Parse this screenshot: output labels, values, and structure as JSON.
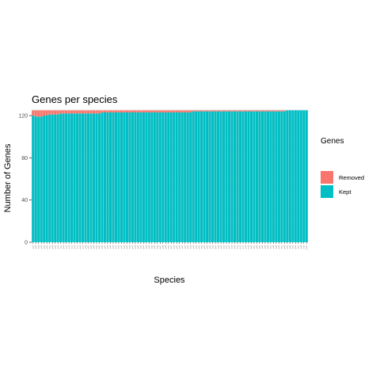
{
  "chart_data": {
    "type": "bar",
    "stacked": true,
    "title": "Genes per species",
    "xlabel": "Species",
    "ylabel": "Number of Genes",
    "ylim": [
      0,
      126
    ],
    "yticks": [
      0,
      40,
      80,
      120
    ],
    "ytick_labels": [
      "0",
      "40",
      "80",
      "120"
    ],
    "grid": true,
    "legend_title": "Genes",
    "legend_position": "right",
    "categories": [
      "sp01",
      "sp02",
      "sp03",
      "sp04",
      "sp05",
      "sp06",
      "sp07",
      "sp08",
      "sp09",
      "sp10",
      "sp11",
      "sp12",
      "sp13",
      "sp14",
      "sp15",
      "sp16",
      "sp17",
      "sp18",
      "sp19",
      "sp20",
      "sp21",
      "sp22",
      "sp23",
      "sp24",
      "sp25",
      "sp26",
      "sp27",
      "sp28",
      "sp29",
      "sp30",
      "sp31",
      "sp32",
      "sp33",
      "sp34",
      "sp35",
      "sp36",
      "sp37",
      "sp38",
      "sp39",
      "sp40",
      "sp41",
      "sp42",
      "sp43",
      "sp44",
      "sp45",
      "sp46",
      "sp47",
      "sp48",
      "sp49",
      "sp50",
      "sp51",
      "sp52",
      "sp53",
      "sp54",
      "sp55",
      "sp56",
      "sp57",
      "sp58",
      "sp59",
      "sp60",
      "sp61",
      "sp62",
      "sp63",
      "sp64",
      "sp65",
      "sp66",
      "sp67",
      "sp68",
      "sp69",
      "sp70",
      "sp71",
      "sp72",
      "sp73",
      "sp74",
      "sp75",
      "sp76",
      "sp77",
      "sp78",
      "sp79",
      "sp80",
      "sp81",
      "sp82",
      "sp83",
      "sp84",
      "sp85",
      "sp86",
      "sp87",
      "sp88",
      "sp89",
      "sp90",
      "sp91",
      "sp92",
      "sp93",
      "sp94",
      "sp95",
      "sp96",
      "sp97",
      "sp98",
      "sp99",
      "sp100"
    ],
    "series": [
      {
        "name": "Kept",
        "color": "#00BFC4",
        "values": [
          120,
          119,
          119,
          119,
          120,
          120,
          121,
          121,
          121,
          121,
          122,
          122,
          122,
          122,
          122,
          122,
          122,
          122,
          122,
          122,
          122,
          122,
          122,
          122,
          122,
          123,
          123,
          123,
          123,
          123,
          123,
          123,
          123,
          123,
          123,
          123,
          123,
          123,
          123,
          123,
          123,
          123,
          123,
          123,
          123,
          123,
          123,
          123,
          123,
          123,
          123,
          123,
          123,
          123,
          123,
          123,
          123,
          123,
          124,
          124,
          124,
          124,
          124,
          124,
          124,
          124,
          124,
          124,
          124,
          124,
          124,
          124,
          124,
          124,
          124,
          124,
          124,
          124,
          124,
          124,
          124,
          124,
          124,
          124,
          124,
          124,
          124,
          124,
          124,
          124,
          124,
          124,
          125,
          125,
          125,
          125,
          125,
          125,
          125,
          125
        ]
      },
      {
        "name": "Removed",
        "color": "#F8766D",
        "values": [
          5,
          6,
          6,
          6,
          5,
          5,
          4,
          4,
          4,
          4,
          3,
          3,
          3,
          3,
          3,
          3,
          3,
          3,
          3,
          3,
          3,
          3,
          3,
          3,
          3,
          2,
          2,
          2,
          2,
          2,
          2,
          2,
          2,
          2,
          2,
          2,
          2,
          2,
          2,
          2,
          2,
          2,
          2,
          2,
          2,
          2,
          2,
          2,
          2,
          2,
          2,
          2,
          2,
          2,
          2,
          2,
          2,
          2,
          1,
          1,
          1,
          1,
          1,
          1,
          1,
          1,
          1,
          1,
          1,
          1,
          1,
          1,
          1,
          1,
          1,
          1,
          1,
          1,
          1,
          1,
          1,
          1,
          1,
          1,
          1,
          1,
          1,
          1,
          1,
          1,
          1,
          1,
          0,
          0,
          0,
          0,
          0,
          0,
          0,
          0
        ]
      }
    ]
  },
  "colors": {
    "removed": "#F8766D",
    "kept": "#00BFC4",
    "panel_background": "#EBEBEB",
    "grid": "#FFFFFF"
  }
}
